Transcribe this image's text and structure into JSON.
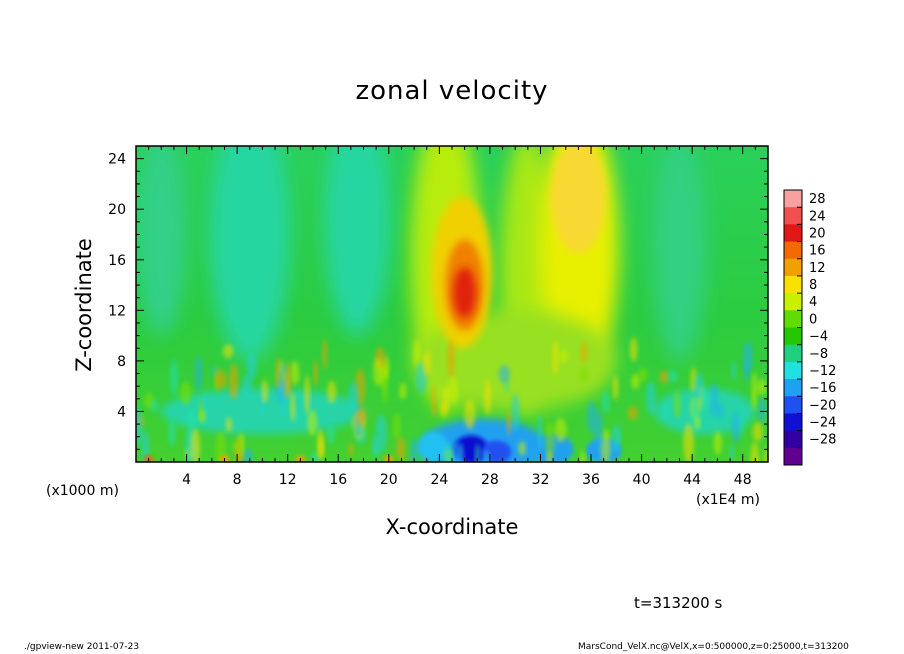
{
  "chart_data": {
    "type": "heatmap",
    "title": "zonal velocity",
    "xlabel": "X-coordinate",
    "ylabel": "Z-coordinate",
    "x_unit_left": "(x1000 m)",
    "x_unit_right": "(x1E4 m)",
    "xlim": [
      0,
      50
    ],
    "ylim": [
      0,
      25
    ],
    "x_ticks": [
      4,
      8,
      12,
      16,
      20,
      24,
      28,
      32,
      36,
      40,
      44,
      48
    ],
    "y_ticks": [
      4,
      8,
      12,
      16,
      20,
      24
    ],
    "colorbar": {
      "levels": [
        28,
        24,
        20,
        16,
        12,
        8,
        4,
        0,
        -4,
        -8,
        -12,
        -16,
        -20,
        -24,
        -28
      ],
      "colors": [
        "#f7a0a0",
        "#f05050",
        "#e01818",
        "#f06a00",
        "#f0a000",
        "#f8e000",
        "#c8f000",
        "#60dc00",
        "#24c800",
        "#20d080",
        "#20e0e0",
        "#20a0f0",
        "#2050f0",
        "#1010d0",
        "#3000a0",
        "#600090"
      ]
    },
    "features": [
      {
        "x": 26,
        "z": 13.5,
        "value": 24,
        "desc": "max"
      },
      {
        "x": 35,
        "z": 21,
        "value": 12
      },
      {
        "x": 26.5,
        "z": 1,
        "value": -24
      },
      {
        "x": 28,
        "z": 1,
        "value": -20
      }
    ]
  },
  "annotations": {
    "time": "t=313200 s",
    "footer_left": "./gpview-new   2011-07-23",
    "footer_right": "MarsCond_VelX.nc@VelX,x=0:500000,z=0:25000,t=313200"
  }
}
